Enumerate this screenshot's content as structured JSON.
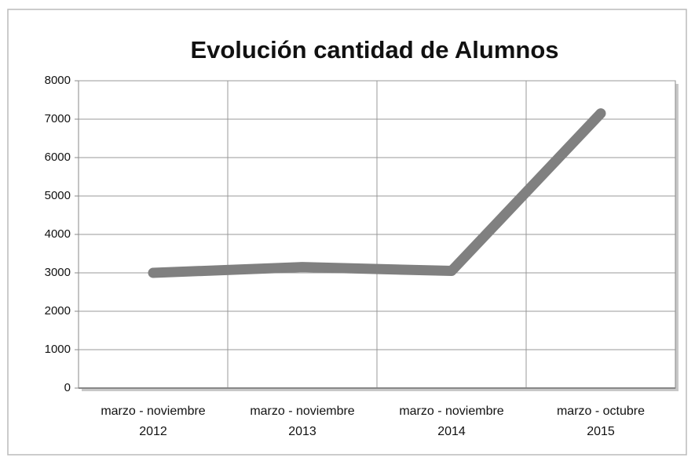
{
  "chart_data": {
    "type": "line",
    "title": "Evolución cantidad de Alumnos",
    "categories": [
      "marzo - noviembre\n2012",
      "marzo - noviembre\n2013",
      "marzo - noviembre\n2014",
      "marzo - octubre\n2015"
    ],
    "series": [
      {
        "name": "Alumnos",
        "color": "#808080",
        "values": [
          3000,
          3150,
          3050,
          7150
        ]
      }
    ],
    "ylim": [
      0,
      8000
    ],
    "yticks": [
      0,
      1000,
      2000,
      3000,
      4000,
      5000,
      6000,
      7000,
      8000
    ],
    "grid": true
  }
}
